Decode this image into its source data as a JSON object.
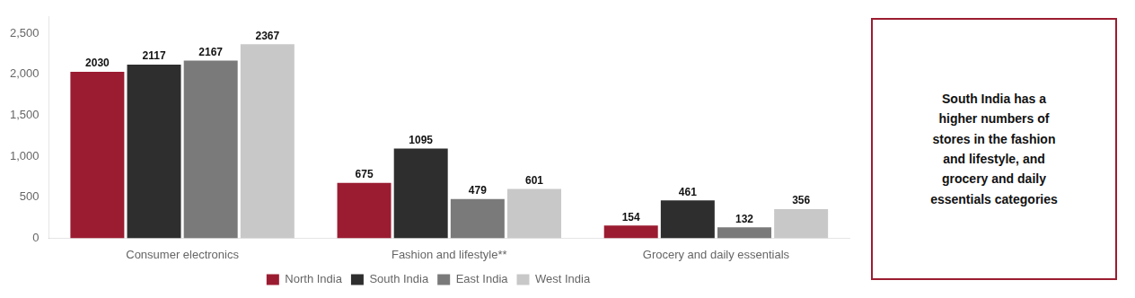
{
  "chart_data": {
    "type": "bar",
    "categories": [
      "Consumer electronics",
      "Fashion and lifestyle**",
      "Grocery and daily essentials"
    ],
    "series": [
      {
        "name": "North India",
        "color": "#9B1C31",
        "values": [
          2030,
          675,
          154
        ]
      },
      {
        "name": "South India",
        "color": "#2E2E2E",
        "values": [
          2117,
          1095,
          461
        ]
      },
      {
        "name": "East India",
        "color": "#7A7A7A",
        "values": [
          2167,
          479,
          132
        ]
      },
      {
        "name": "West India",
        "color": "#C8C8C8",
        "values": [
          2367,
          601,
          356
        ]
      }
    ],
    "ylim": [
      0,
      2700
    ],
    "yticks": [
      0,
      500,
      1000,
      1500,
      2000,
      2500
    ],
    "grid": false,
    "legend": "bottom",
    "data_labels": true,
    "annotation": "South India has a\nhigher numbers of\nstores in the fashion\nand lifestyle, and\ngrocery and daily\nessentials categories"
  }
}
